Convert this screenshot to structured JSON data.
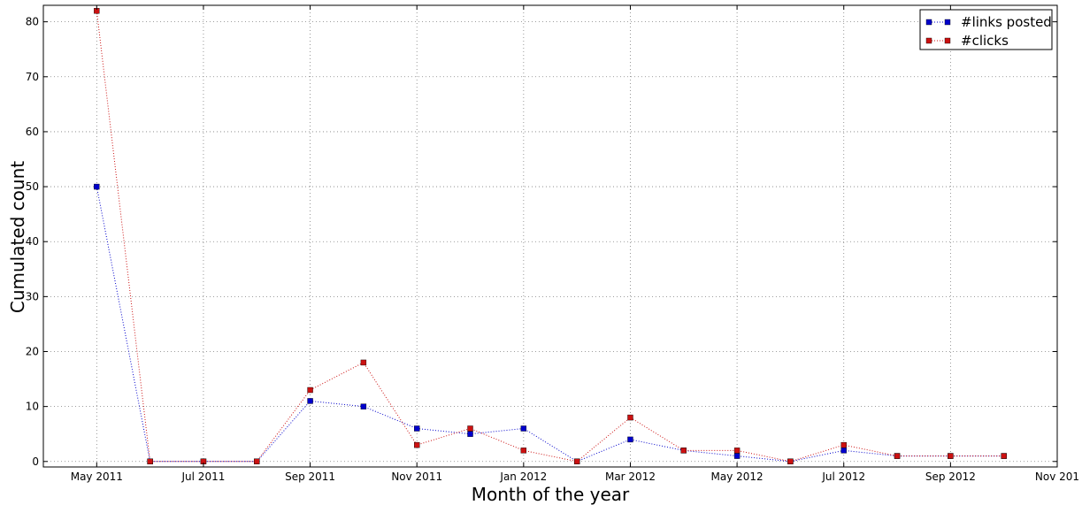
{
  "chart_data": {
    "type": "line",
    "title": "",
    "xlabel": "Month of the year",
    "ylabel": "Cumulated count",
    "x": [
      "2011-05",
      "2011-06",
      "2011-07",
      "2011-08",
      "2011-09",
      "2011-10",
      "2011-11",
      "2011-12",
      "2012-01",
      "2012-02",
      "2012-03",
      "2012-04",
      "2012-05",
      "2012-06",
      "2012-07",
      "2012-08",
      "2012-09",
      "2012-10"
    ],
    "series": [
      {
        "name": "#links posted",
        "color": "#0000cc",
        "values": [
          50,
          0,
          0,
          0,
          11,
          10,
          6,
          5,
          6,
          0,
          4,
          2,
          1,
          0,
          2,
          1,
          1,
          1
        ]
      },
      {
        "name": "#clicks",
        "color": "#cc1111",
        "values": [
          82,
          0,
          0,
          0,
          13,
          18,
          3,
          6,
          2,
          0,
          8,
          2,
          2,
          0,
          3,
          1,
          1,
          1
        ]
      }
    ],
    "xticks": [
      {
        "month": "2011-05",
        "label": "May 2011"
      },
      {
        "month": "2011-07",
        "label": "Jul 2011"
      },
      {
        "month": "2011-09",
        "label": "Sep 2011"
      },
      {
        "month": "2011-11",
        "label": "Nov 2011"
      },
      {
        "month": "2012-01",
        "label": "Jan 2012"
      },
      {
        "month": "2012-03",
        "label": "Mar 2012"
      },
      {
        "month": "2012-05",
        "label": "May 2012"
      },
      {
        "month": "2012-07",
        "label": "Jul 2012"
      },
      {
        "month": "2012-09",
        "label": "Sep 2012"
      },
      {
        "month": "2012-11",
        "label": "Nov 201"
      }
    ],
    "xlim": [
      "2011-04",
      "2012-11"
    ],
    "yticks": [
      0,
      10,
      20,
      30,
      40,
      50,
      60,
      70,
      80
    ],
    "ylim": [
      -1,
      83
    ],
    "grid": true,
    "legend_position": "top-right"
  }
}
